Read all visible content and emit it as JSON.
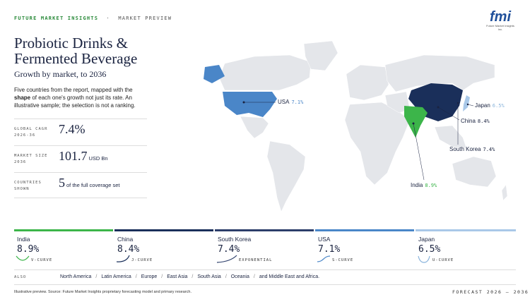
{
  "header": {
    "brand": "FUTURE MARKET INSIGHTS",
    "separator": "·",
    "section": "MARKET PREVIEW",
    "logo": "fmi",
    "logo_sub": "Future Market Insights Inc."
  },
  "title": "Probiotic Drinks & Fermented Beverage",
  "subtitle": "Growth by market, to 2036",
  "intro": [
    "Five countries from the report, mapped with the ",
    "shape",
    " of each one's growth not just its rate. An illustrative sample; the selection is not a ranking."
  ],
  "stats": [
    {
      "label": "GLOBAL CAGR 2026-36",
      "value": "7.4%",
      "unit": ""
    },
    {
      "label": "MARKET SIZE 2036",
      "value": "101.7",
      "unit": "USD Bn"
    },
    {
      "label": "COUNTRIES SHOWN",
      "value": "5",
      "unit": "of the full coverage set"
    }
  ],
  "map_labels": [
    {
      "name": "USA",
      "value": "7.1%"
    },
    {
      "name": "Japan",
      "value": "6.5%"
    },
    {
      "name": "China",
      "value": "8.4%"
    },
    {
      "name": "South Korea",
      "value": "7.4%"
    },
    {
      "name": "India",
      "value": "8.9%"
    }
  ],
  "cards": [
    {
      "country": "India",
      "value": "8.9%",
      "curve": "V-CURVE"
    },
    {
      "country": "China",
      "value": "8.4%",
      "curve": "J-CURVE"
    },
    {
      "country": "South Korea",
      "value": "7.4%",
      "curve": "EXPONENTIAL"
    },
    {
      "country": "USA",
      "value": "7.1%",
      "curve": "S-CURVE"
    },
    {
      "country": "Japan",
      "value": "6.5%",
      "curve": "U-CURVE"
    }
  ],
  "also": {
    "label": "ALSO",
    "separator": "/",
    "regions": [
      "North America",
      "Latin America",
      "Europe",
      "East Asia",
      "South Asia",
      "Oceania",
      "and Middle East and Africa."
    ]
  },
  "footer": {
    "source": "Illustrative preview. Source: Future Market Insights proprietary forecasting model and primary research.",
    "forecast": "FORECAST 2026 – 2036"
  }
}
